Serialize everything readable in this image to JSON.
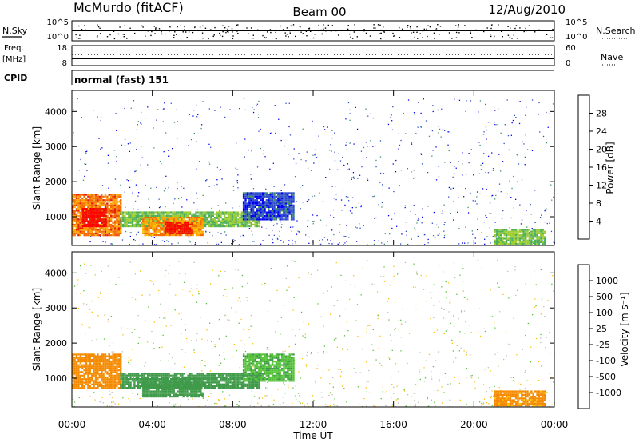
{
  "header": {
    "station": "McMurdo (fitACF)",
    "beam": "Beam 00",
    "date": "12/Aug/2010"
  },
  "strip": {
    "nsky_label": "N.Sky",
    "nsearch_label": "N.Search",
    "noise_ticks": [
      "10^5",
      "10^0"
    ],
    "freq_label": "Freq.",
    "freq_unit": "[MHz]",
    "freq_ticks": [
      "18",
      "8"
    ],
    "nave_label": "Nave",
    "nave_ticks": [
      "60",
      "0"
    ],
    "cpid_label": "CPID",
    "cpid_value": "normal (fast) 151"
  },
  "chart_data": [
    {
      "type": "heatmap",
      "title": "",
      "xlabel": "",
      "ylabel": "Slant Range [km]",
      "xlim": [
        0,
        24
      ],
      "ylim": [
        180,
        4600
      ],
      "x_ticks": [
        "00:00",
        "04:00",
        "08:00",
        "12:00",
        "16:00",
        "20:00",
        "00:00"
      ],
      "y_ticks": [
        "1000",
        "2000",
        "3000",
        "4000"
      ],
      "colorbar": {
        "label": "Power [dB]",
        "ticks": [
          "28",
          "24",
          "20",
          "16",
          "12",
          "8",
          "4"
        ],
        "colors": [
          "#0000f5",
          "#2f4ec8",
          "#3f8f6a",
          "#4fb05a",
          "#9ccc2f",
          "#f5d000",
          "#ffa200",
          "#f26a00",
          "#e82000",
          "#ff0000"
        ]
      },
      "regions": [
        {
          "x": [
            0.0,
            2.4
          ],
          "y": [
            450,
            1650
          ],
          "value": 24
        },
        {
          "x": [
            0.5,
            1.7
          ],
          "y": [
            700,
            1250
          ],
          "value": 30
        },
        {
          "x": [
            2.4,
            9.3
          ],
          "y": [
            700,
            1150
          ],
          "value": 14
        },
        {
          "x": [
            3.5,
            6.5
          ],
          "y": [
            450,
            1000
          ],
          "value": 22
        },
        {
          "x": [
            4.6,
            6.0
          ],
          "y": [
            500,
            850
          ],
          "value": 29
        },
        {
          "x": [
            8.5,
            11.0
          ],
          "y": [
            900,
            1700
          ],
          "value": 6
        },
        {
          "x": [
            21.0,
            23.5
          ],
          "y": [
            200,
            650
          ],
          "value": 14
        }
      ]
    },
    {
      "type": "heatmap",
      "title": "",
      "xlabel": "Time UT",
      "ylabel": "Slant Range [km]",
      "xlim": [
        0,
        24
      ],
      "ylim": [
        180,
        4600
      ],
      "x_ticks": [
        "00:00",
        "04:00",
        "08:00",
        "12:00",
        "16:00",
        "20:00",
        "00:00"
      ],
      "y_ticks": [
        "1000",
        "2000",
        "3000",
        "4000"
      ],
      "colorbar": {
        "label": "Velocity [m s⁻¹]",
        "ticks": [
          "1000",
          "500",
          "100",
          "25",
          "-25",
          "-100",
          "-500",
          "-1000"
        ],
        "colors": [
          "#ff0000",
          "#f05000",
          "#f58a00",
          "#ffc000",
          "#bdbdbd",
          "#55c23a",
          "#3f9a4a",
          "#2d7a8e",
          "#2f4ec8",
          "#1f2fd8"
        ]
      },
      "regions": [
        {
          "x": [
            0.0,
            2.4
          ],
          "y": [
            700,
            1700
          ],
          "value": -300
        },
        {
          "x": [
            2.4,
            9.3
          ],
          "y": [
            700,
            1150
          ],
          "value": 300
        },
        {
          "x": [
            3.5,
            6.5
          ],
          "y": [
            450,
            1000
          ],
          "value": 350
        },
        {
          "x": [
            8.5,
            11.0
          ],
          "y": [
            900,
            1700
          ],
          "value": 80
        },
        {
          "x": [
            21.0,
            23.5
          ],
          "y": [
            200,
            650
          ],
          "value": -150
        }
      ]
    }
  ]
}
